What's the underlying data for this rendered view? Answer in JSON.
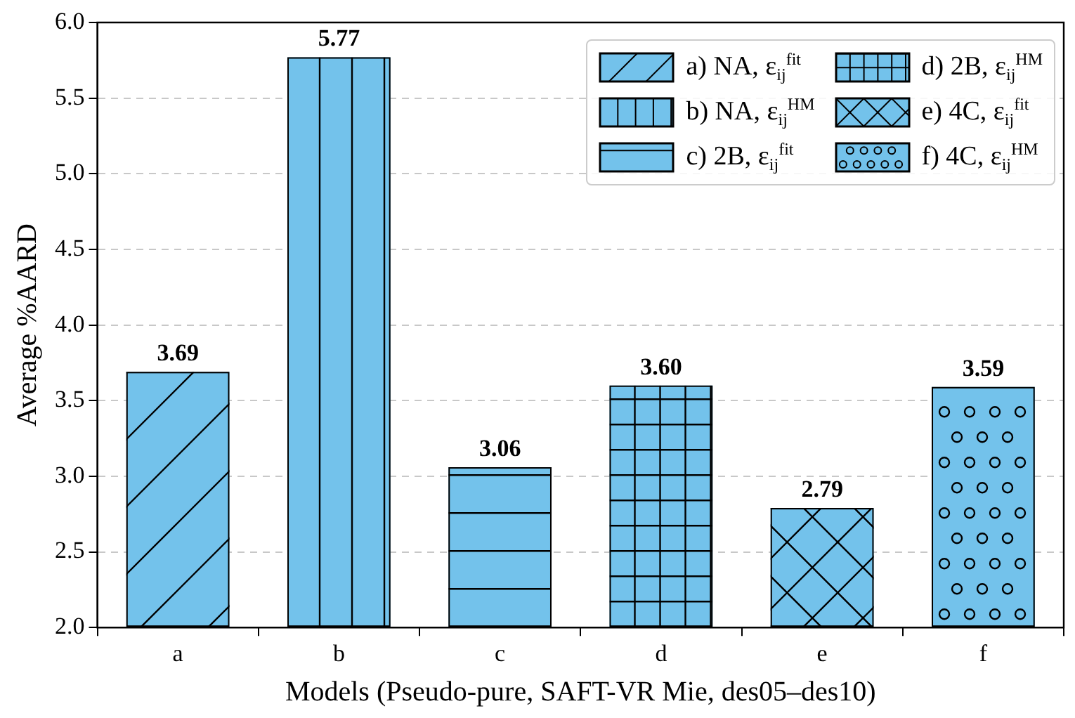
{
  "chart_data": {
    "type": "bar",
    "xlabel": "Models (Pseudo-pure, SAFT-VR Mie, des05–des10)",
    "ylabel": "Average %AARD",
    "categories": [
      "a",
      "b",
      "c",
      "d",
      "e",
      "f"
    ],
    "series": [
      {
        "name": "a) NA, ε$_{ij}$$^{fit}$",
        "color": "#73c2eb",
        "values": [
          3.69,
          null,
          null,
          null,
          null,
          null
        ],
        "value_labels": [
          "3.69",
          null,
          null,
          null,
          null,
          null
        ]
      },
      {
        "name": "b) NA, ε$_{ij}$$^{HM}$",
        "color": "#73c2eb",
        "values": [
          null,
          5.77,
          null,
          null,
          null,
          null
        ],
        "value_labels": [
          null,
          "5.77",
          null,
          null,
          null,
          null
        ]
      },
      {
        "name": "c) 2B, ε$_{ij}$$^{fit}$",
        "color": "#73c2eb",
        "values": [
          null,
          null,
          3.06,
          null,
          null,
          null
        ],
        "value_labels": [
          null,
          null,
          "3.06",
          null,
          null,
          null
        ]
      },
      {
        "name": "d) 2B, ε$_{ij}$$^{HM}$",
        "color": "#73c2eb",
        "values": [
          null,
          null,
          null,
          3.6,
          null,
          null
        ],
        "value_labels": [
          null,
          null,
          null,
          "3.60",
          null,
          null
        ]
      },
      {
        "name": "e) 4C, ε$_{ij}$$^{fit}$",
        "color": "#73c2eb",
        "values": [
          null,
          null,
          null,
          null,
          2.79,
          null
        ],
        "value_labels": [
          null,
          null,
          null,
          null,
          "2.79",
          null
        ]
      },
      {
        "name": "f) 4C, ε$_{ij}$$^{HM}$",
        "color": "#73c2eb",
        "values": [
          null,
          null,
          null,
          null,
          null,
          3.59
        ],
        "value_labels": [
          null,
          null,
          null,
          null,
          null,
          "3.59"
        ]
      }
    ],
    "ylim": [
      2.0,
      6.0
    ],
    "yticks": [
      {
        "value": 2,
        "label": "2.0"
      },
      {
        "value": 2.5,
        "label": "2.5"
      },
      {
        "value": 3,
        "label": "3.0"
      },
      {
        "value": 3.5,
        "label": "3.5"
      },
      {
        "value": 4,
        "label": "4.0"
      },
      {
        "value": 4.5,
        "label": "4.5"
      },
      {
        "value": 5,
        "label": "5.0"
      },
      {
        "value": 5.5,
        "label": "5.5"
      },
      {
        "value": 6,
        "label": "6.0"
      }
    ],
    "grid": "y",
    "legend": "top right"
  }
}
